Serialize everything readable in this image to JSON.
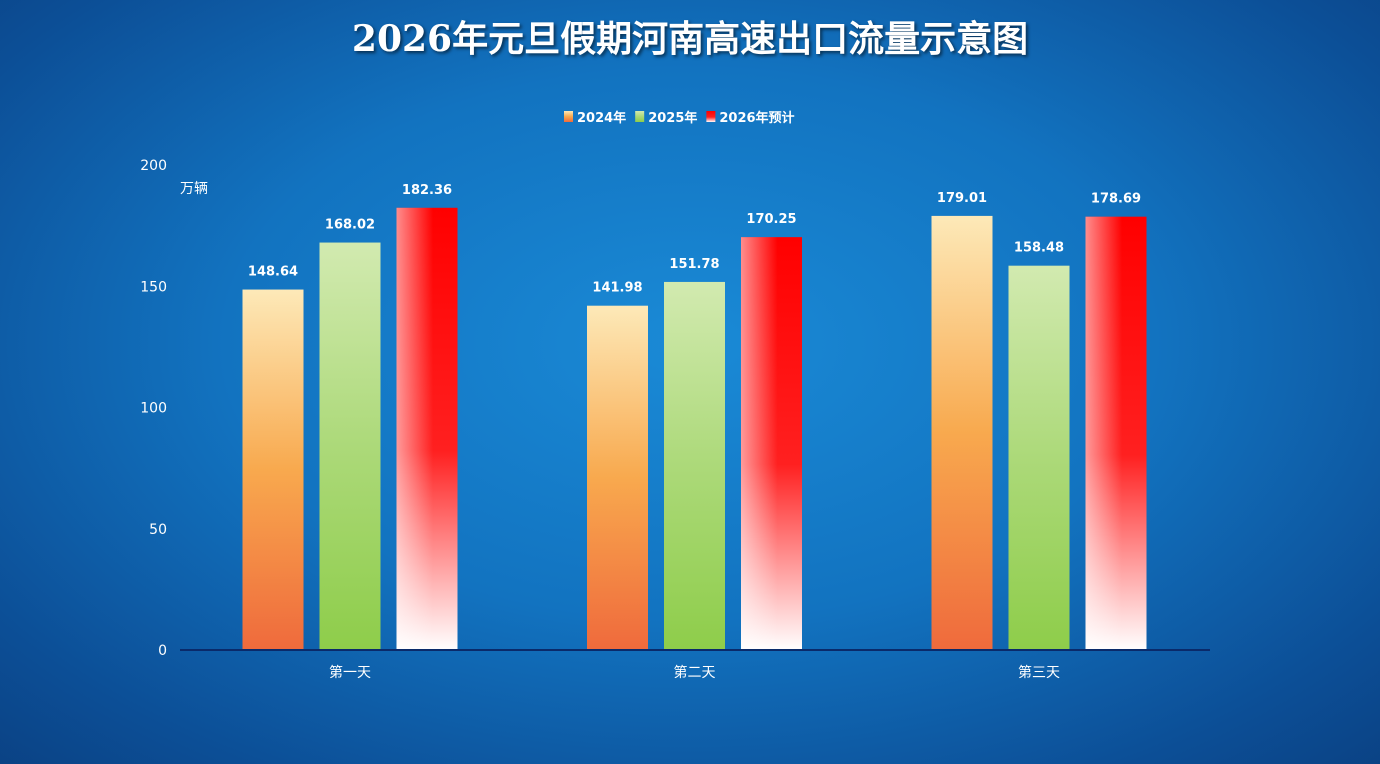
{
  "chart_data": {
    "type": "bar",
    "title": "2026年元旦假期河南高速出口流量示意图",
    "ylabel": "万辆",
    "xlabel": "",
    "categories": [
      "第一天",
      "第二天",
      "第三天"
    ],
    "series": [
      {
        "name": "2024年",
        "values": [
          148.64,
          141.98,
          179.01
        ],
        "color": "#f39a3c"
      },
      {
        "name": "2025年",
        "values": [
          168.02,
          151.78,
          158.48
        ],
        "color": "#9ed85a"
      },
      {
        "name": "2026年预计",
        "values": [
          182.36,
          170.25,
          178.69
        ],
        "color": "#ff0000"
      }
    ],
    "data_labels": [
      [
        "148.64",
        "141.98",
        "179.01"
      ],
      [
        "168.02",
        "151.78",
        "158.48"
      ],
      [
        "182.36",
        "170.25",
        "178.69"
      ]
    ],
    "ylim": [
      0,
      200
    ],
    "yticks": [
      "0",
      "50",
      "100",
      "150",
      "200"
    ],
    "grid": false,
    "legend": "top-center"
  }
}
